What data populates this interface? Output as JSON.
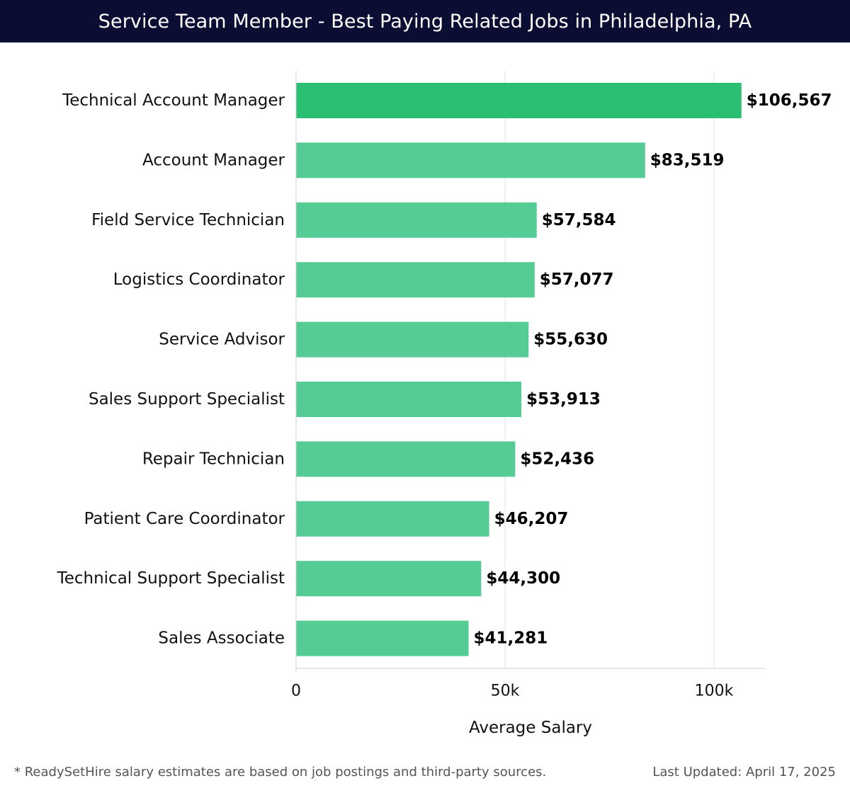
{
  "header": {
    "title": "Service Team Member - Best Paying Related Jobs in Philadelphia, PA"
  },
  "footer": {
    "note": "* ReadySetHire salary estimates are based on job postings and third-party sources.",
    "updated": "Last Updated: April 17, 2025"
  },
  "colors": {
    "title_bg": "#0c0d33",
    "bar_top": "#2bbf74",
    "bar": "#55cc94"
  },
  "chart_data": {
    "type": "bar",
    "orientation": "horizontal",
    "xlabel": "Average Salary",
    "ylabel": "",
    "xlim": [
      0,
      112000
    ],
    "grid": true,
    "ticks": [
      {
        "value": 0,
        "label": "0"
      },
      {
        "value": 50000,
        "label": "50k"
      },
      {
        "value": 100000,
        "label": "100k"
      }
    ],
    "categories": [
      "Technical Account Manager",
      "Account Manager",
      "Field Service Technician",
      "Logistics Coordinator",
      "Service Advisor",
      "Sales Support Specialist",
      "Repair Technician",
      "Patient Care Coordinator",
      "Technical Support Specialist",
      "Sales Associate"
    ],
    "values": [
      106567,
      83519,
      57584,
      57077,
      55630,
      53913,
      52436,
      46207,
      44300,
      41281
    ],
    "value_labels": [
      "$106,567",
      "$83,519",
      "$57,584",
      "$57,077",
      "$55,630",
      "$53,913",
      "$52,436",
      "$46,207",
      "$44,300",
      "$41,281"
    ]
  }
}
